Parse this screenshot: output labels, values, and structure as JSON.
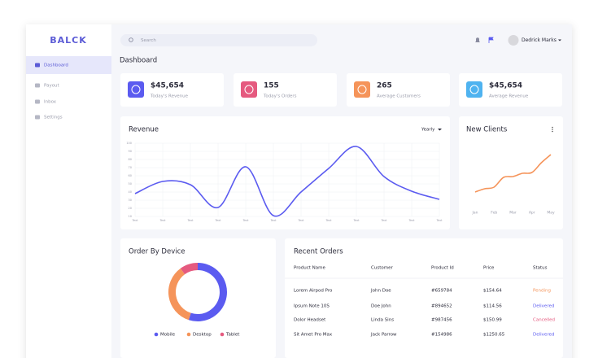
{
  "brand": "BALCK",
  "sidebar": [
    "Dashboard",
    "Payout",
    "Inbox",
    "Settings"
  ],
  "header": {
    "search_placeholder": "Search",
    "user": "Dedrick Marks",
    "page_title": "Dashboard"
  },
  "stats": [
    {
      "value": "$45,654",
      "label": "Today's Revenue"
    },
    {
      "value": "155",
      "label": "Today's Orders"
    },
    {
      "value": "265",
      "label": "Average Customers"
    },
    {
      "value": "$45,654",
      "label": "Average Revenue"
    }
  ],
  "chart_data": [
    {
      "type": "line",
      "title": "Revenue",
      "period": "Yearly",
      "color": "#5b5bf0",
      "grid": true,
      "categories": [
        "Text",
        "Text",
        "Text",
        "Text",
        "Text",
        "Text",
        "Text",
        "Text",
        "Text",
        "Text",
        "Text",
        "Text"
      ],
      "values": [
        38,
        53,
        49,
        21,
        71,
        11,
        40,
        69,
        96,
        59,
        41,
        31
      ],
      "ylim": [
        10,
        100
      ],
      "yticks": [
        10,
        20,
        30,
        40,
        50,
        60,
        70,
        80,
        90,
        100
      ]
    },
    {
      "type": "line",
      "title": "New Clients",
      "color": "#f5945a",
      "grid": false,
      "categories": [
        "Jan",
        null,
        "Feb",
        null,
        "Mar",
        null,
        "Apr",
        null,
        "May"
      ],
      "values": [
        30,
        34,
        36,
        48,
        49,
        53,
        54,
        66,
        76
      ],
      "ylim": [
        0,
        90
      ]
    },
    {
      "type": "pie",
      "donut": true,
      "title": "Order By Device",
      "categories": [
        "Mobile",
        "Desktop",
        "Tablet"
      ],
      "values": [
        55,
        35,
        10
      ],
      "colors": [
        "#5b5bf0",
        "#f5945a",
        "#e55a7f"
      ]
    }
  ],
  "table": {
    "title": "Recent Orders",
    "headers": [
      "Product Name",
      "Customer",
      "Product Id",
      "Price",
      "Status"
    ],
    "rows": [
      [
        "Lorem Airpod Pro",
        "John Doe",
        "#659784",
        "$154.64",
        "Pending"
      ],
      [
        "Ipsum Note 10S",
        "Doe John",
        "#894652",
        "$114.56",
        "Delivered"
      ],
      [
        "Dolor Headset",
        "Linda Sins",
        "#987456",
        "$150.99",
        "Cancelled"
      ],
      [
        "Sit Amet Pro Max",
        "Jack Parrow",
        "#154986",
        "$1250.65",
        "Delivered"
      ]
    ]
  }
}
